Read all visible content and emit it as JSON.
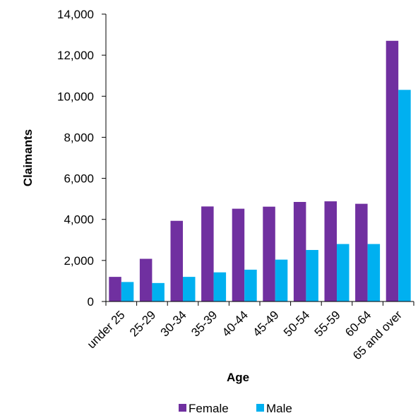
{
  "chart_data": {
    "type": "bar",
    "title": "",
    "xlabel": "Age",
    "ylabel": "Claimants",
    "ylim": [
      0,
      14000
    ],
    "yticks": [
      0,
      2000,
      4000,
      6000,
      8000,
      10000,
      12000,
      14000
    ],
    "ytick_labels": [
      "0",
      "2,000",
      "4,000",
      "6,000",
      "8,000",
      "10,000",
      "12,000",
      "14,000"
    ],
    "categories": [
      "under 25",
      "25-29",
      "30-34",
      "35-39",
      "40-44",
      "45-49",
      "50-54",
      "55-59",
      "60-64",
      "65 and over"
    ],
    "series": [
      {
        "name": "Female",
        "color": "#7030A0",
        "values": [
          1200,
          2080,
          3930,
          4630,
          4520,
          4620,
          4850,
          4880,
          4760,
          12700
        ]
      },
      {
        "name": "Male",
        "color": "#00B0F0",
        "values": [
          950,
          900,
          1200,
          1420,
          1550,
          2040,
          2510,
          2800,
          2800,
          10310
        ]
      }
    ],
    "grid": false,
    "legend_position": "bottom"
  }
}
